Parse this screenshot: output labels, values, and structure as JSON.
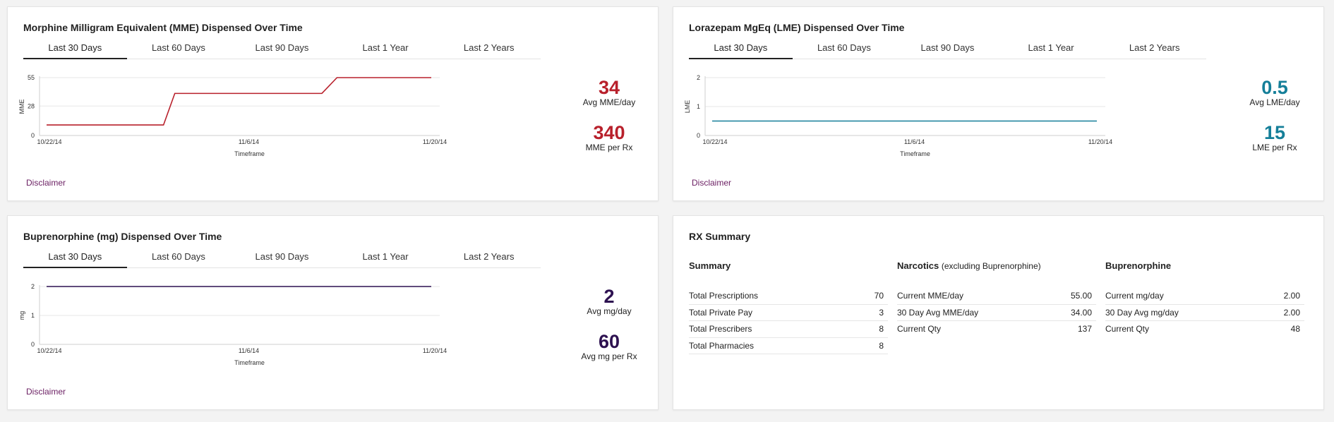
{
  "tabs": [
    "Last 30 Days",
    "Last 60 Days",
    "Last 90 Days",
    "Last 1 Year",
    "Last 2 Years"
  ],
  "disclaimer": "Disclaimer",
  "mme": {
    "title": "Morphine Milligram Equivalent (MME) Dispensed Over Time",
    "active_tab": 0,
    "avg_value": "34",
    "avg_label": "Avg MME/day",
    "per_value": "340",
    "per_label": "MME per Rx",
    "color": "#b8202b"
  },
  "lme": {
    "title": "Lorazepam MgEq (LME) Dispensed Over Time",
    "active_tab": 0,
    "avg_value": "0.5",
    "avg_label": "Avg LME/day",
    "per_value": "15",
    "per_label": "LME per Rx",
    "color": "#157f99"
  },
  "bup": {
    "title": "Buprenorphine (mg) Dispensed Over Time",
    "active_tab": 0,
    "avg_value": "2",
    "avg_label": "Avg mg/day",
    "per_value": "60",
    "per_label": "Avg mg per Rx",
    "color": "#2d1150"
  },
  "rx": {
    "title": "RX Summary",
    "summary": {
      "heading": "Summary",
      "rows": [
        {
          "label": "Total Prescriptions",
          "value": "70"
        },
        {
          "label": "Total Private Pay",
          "value": "3"
        },
        {
          "label": "Total Prescribers",
          "value": "8"
        },
        {
          "label": "Total Pharmacies",
          "value": "8"
        }
      ]
    },
    "narcotics": {
      "heading": "Narcotics",
      "subheading": "(excluding Buprenorphine)",
      "rows": [
        {
          "label": "Current MME/day",
          "value": "55.00"
        },
        {
          "label": "30 Day Avg MME/day",
          "value": "34.00"
        },
        {
          "label": "Current Qty",
          "value": "137"
        }
      ]
    },
    "buprenorphine": {
      "heading": "Buprenorphine",
      "rows": [
        {
          "label": "Current mg/day",
          "value": "2.00"
        },
        {
          "label": "30 Day Avg mg/day",
          "value": "2.00"
        },
        {
          "label": "Current Qty",
          "value": "48"
        }
      ]
    }
  },
  "chart_data": [
    {
      "type": "line",
      "name": "mme-chart",
      "x_ticks": [
        "10/22/14",
        "11/6/14",
        "11/20/14"
      ],
      "xlabel": "Timeframe",
      "ylabel": "MME",
      "y_ticks": [
        0,
        28,
        55
      ],
      "ylim": [
        0,
        55
      ],
      "x": [
        0,
        15.5,
        17,
        36.5,
        38.5,
        51
      ],
      "values": [
        10,
        10,
        40,
        40,
        55,
        55
      ],
      "x_range": [
        0,
        51
      ],
      "color": "#b8202b"
    },
    {
      "type": "line",
      "name": "lme-chart",
      "x_ticks": [
        "10/22/14",
        "11/6/14",
        "11/20/14"
      ],
      "xlabel": "Timeframe",
      "ylabel": "LME",
      "y_ticks": [
        0,
        1,
        2
      ],
      "ylim": [
        0,
        2
      ],
      "x": [
        0,
        51
      ],
      "values": [
        0.5,
        0.5
      ],
      "x_range": [
        0,
        51
      ],
      "color": "#157f99"
    },
    {
      "type": "line",
      "name": "bup-chart",
      "x_ticks": [
        "10/22/14",
        "11/6/14",
        "11/20/14"
      ],
      "xlabel": "Timeframe",
      "ylabel": "mg",
      "y_ticks": [
        0,
        1,
        2
      ],
      "ylim": [
        0,
        2
      ],
      "x": [
        0,
        51
      ],
      "values": [
        2,
        2
      ],
      "x_range": [
        0,
        51
      ],
      "color": "#2d1150"
    }
  ]
}
